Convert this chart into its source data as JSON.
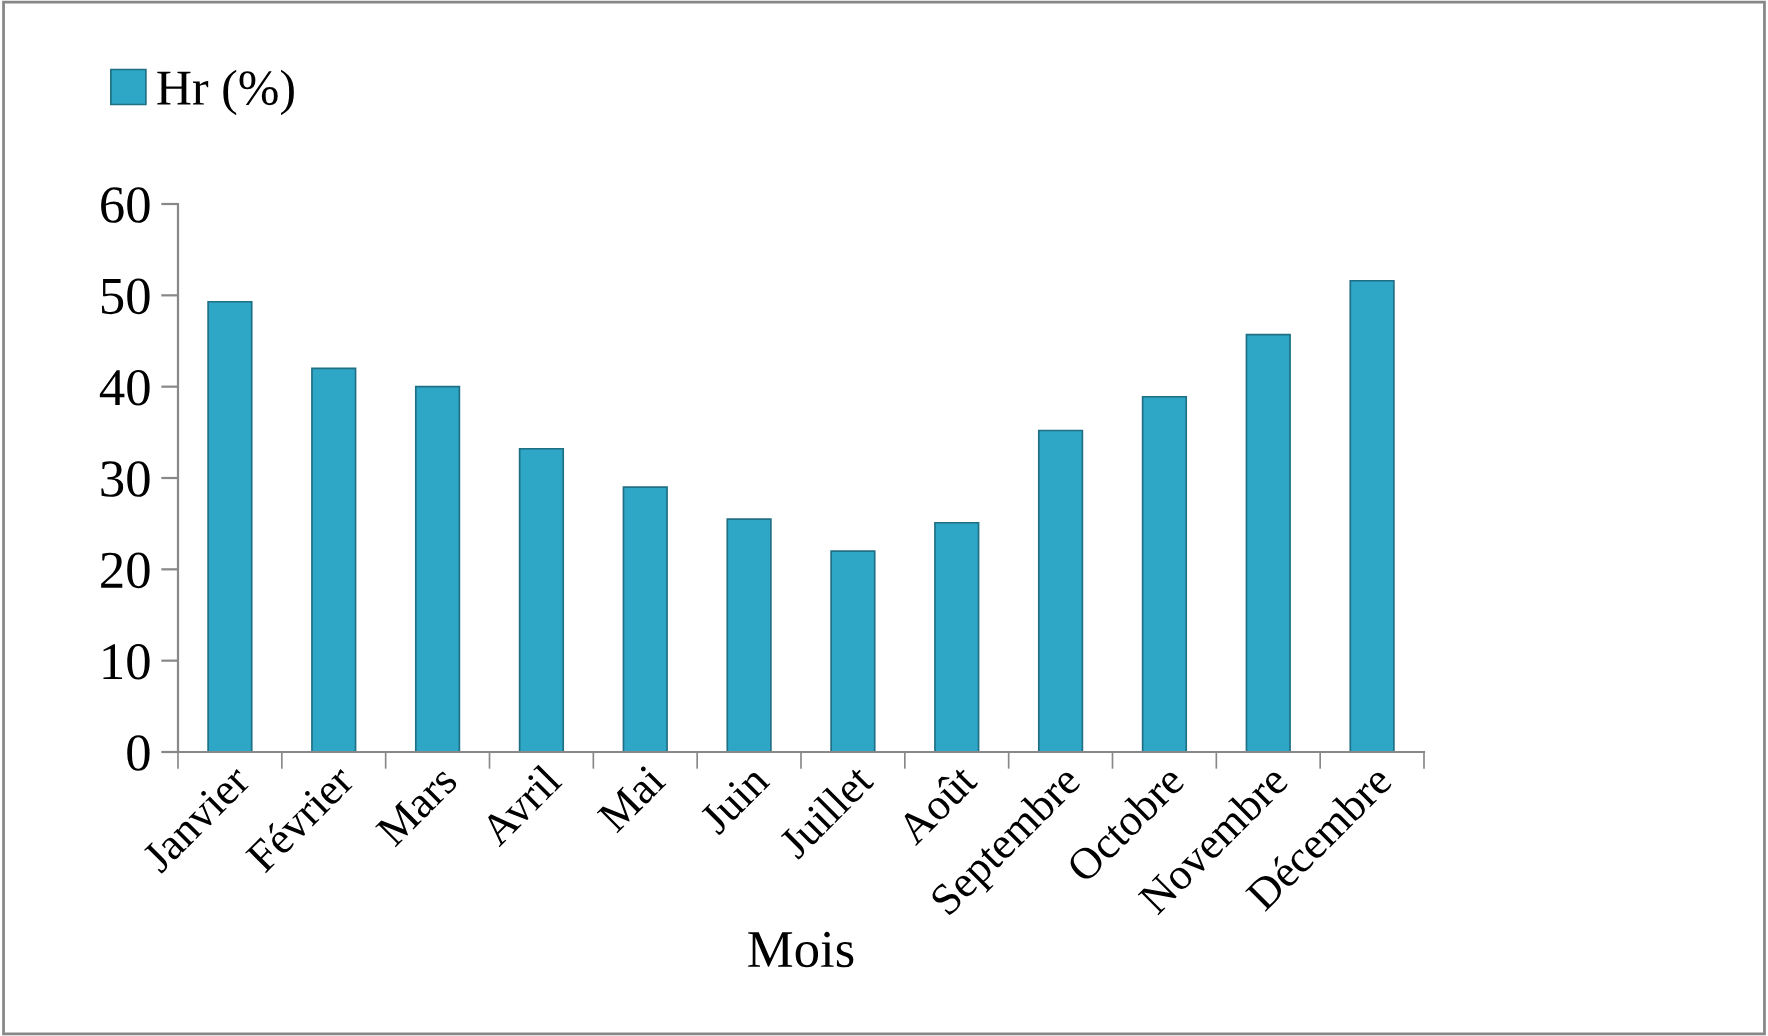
{
  "chart_data": {
    "type": "bar",
    "xlabel": "Mois",
    "categories": [
      "Janvier",
      "Février",
      "Mars",
      "Avril",
      "Mai",
      "Juin",
      "Juillet",
      "Août",
      "Septembre",
      "Octobre",
      "Novembre",
      "Décembre"
    ],
    "series": [
      {
        "name": "Hr (%)",
        "color": "#2ea6c6",
        "values": [
          49.3,
          42.0,
          40.0,
          33.2,
          29.0,
          25.5,
          22.0,
          25.1,
          35.2,
          38.9,
          45.7,
          51.6
        ]
      }
    ],
    "ylim": [
      0,
      60
    ],
    "yticks": [
      0,
      10,
      20,
      30,
      40,
      50,
      60
    ],
    "grid": false,
    "legend": "top left"
  }
}
